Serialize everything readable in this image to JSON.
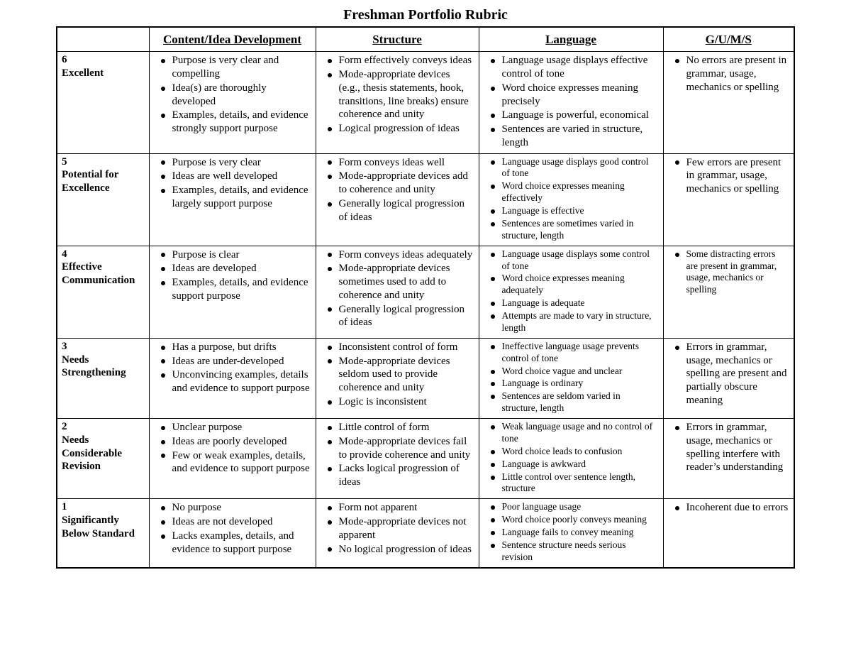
{
  "title": "Freshman Portfolio Rubric",
  "columns": [
    "",
    "Content/Idea Development",
    "Structure",
    "Language",
    "G/U/M/S"
  ],
  "rows": [
    {
      "num": "6",
      "name": "Excellent",
      "small_lang": false,
      "cells": [
        [
          "Purpose is very clear and compelling",
          "Idea(s) are thoroughly developed",
          "Examples, details, and evidence strongly support purpose"
        ],
        [
          "Form effectively conveys ideas",
          "Mode-appropriate devices (e.g., thesis statements, hook, transitions, line breaks) ensure coherence and unity",
          "Logical progression of ideas"
        ],
        [
          "Language usage displays effective control of tone",
          "Word choice expresses meaning precisely",
          "Language is powerful, economical",
          "Sentences are varied in structure, length"
        ],
        [
          "No errors are present in grammar, usage, mechanics or spelling"
        ]
      ]
    },
    {
      "num": "5",
      "name": "Potential for Excellence",
      "small_lang": true,
      "cells": [
        [
          "Purpose is very clear",
          "Ideas are well developed",
          "Examples, details, and evidence largely support purpose"
        ],
        [
          "Form conveys ideas well",
          "Mode-appropriate devices add to coherence and unity",
          "Generally logical progression of ideas"
        ],
        [
          "Language usage displays good control of tone",
          "Word choice expresses meaning effectively",
          "Language is effective",
          "Sentences are sometimes varied in structure, length"
        ],
        [
          "Few errors are present in grammar, usage, mechanics or spelling"
        ]
      ]
    },
    {
      "num": "4",
      "name": "Effective Communication",
      "small_lang": true,
      "cells": [
        [
          "Purpose is clear",
          "Ideas are developed",
          "Examples, details, and evidence support purpose"
        ],
        [
          "Form conveys ideas adequately",
          "Mode-appropriate devices sometimes used to add to coherence and unity",
          "Generally logical progression of ideas"
        ],
        [
          "Language usage displays some control of tone",
          "Word choice expresses meaning adequately",
          "Language is adequate",
          "Attempts are made to vary in structure, length"
        ],
        [
          "Some distracting errors are present in grammar, usage, mechanics or spelling"
        ]
      ]
    },
    {
      "num": "3",
      "name": "Needs Strengthening",
      "small_lang": true,
      "cells": [
        [
          "Has a purpose, but drifts",
          "Ideas are under-developed",
          "Unconvincing examples, details and evidence to support purpose"
        ],
        [
          "Inconsistent control of form",
          "Mode-appropriate devices seldom used to provide coherence and unity",
          "Logic is inconsistent"
        ],
        [
          "Ineffective language usage prevents control of tone",
          "Word choice vague and unclear",
          "Language is ordinary",
          "Sentences are seldom varied in structure, length"
        ],
        [
          "Errors in grammar, usage, mechanics or spelling are present and partially obscure meaning"
        ]
      ]
    },
    {
      "num": "2",
      "name": "Needs Considerable Revision",
      "small_lang": true,
      "cells": [
        [
          "Unclear purpose",
          "Ideas are poorly developed",
          "Few or weak examples, details, and evidence to support purpose"
        ],
        [
          "Little control of form",
          "Mode-appropriate devices fail  to provide coherence and unity",
          "Lacks logical progression of ideas"
        ],
        [
          "Weak language usage and no control of (tone)",
          "Word choice leads to confusion",
          "Language is awkward",
          "Little control over sentence length, structure"
        ],
        [
          "Errors in grammar, usage, mechanics or spelling interfere with reader’s understanding"
        ]
      ]
    },
    {
      "num": "1",
      "name": "Significantly Below Standard",
      "small_lang": true,
      "cells": [
        [
          "No purpose",
          "Ideas are not developed",
          "Lacks examples, details, and evidence to support purpose"
        ],
        [
          "Form not apparent",
          "Mode-appropriate devices not apparent",
          "No logical progression of ideas"
        ],
        [
          "Poor language usage",
          "Word choice poorly conveys meaning",
          "Language fails to convey meaning",
          "Sentence structure needs serious revision"
        ],
        [
          "Incoherent due to errors"
        ]
      ]
    }
  ]
}
